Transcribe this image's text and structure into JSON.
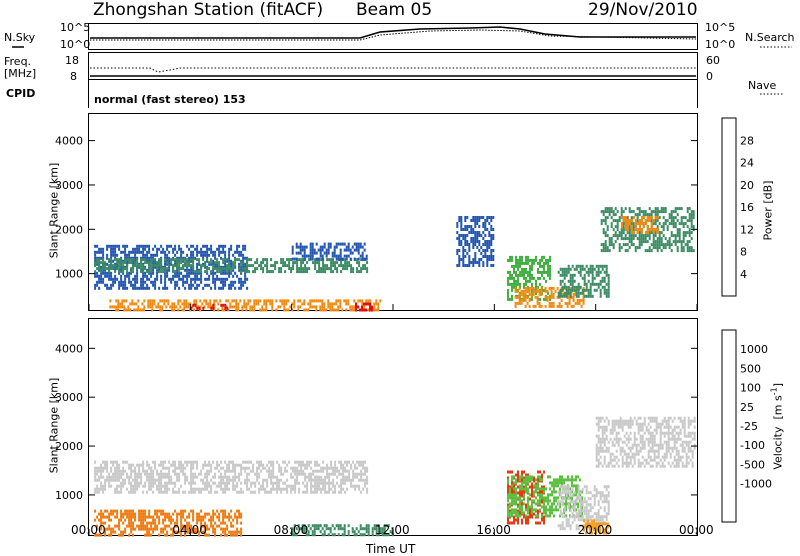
{
  "header": {
    "station": "Zhongshan Station (fitACF)",
    "beam": "Beam 05",
    "date": "29/Nov/2010"
  },
  "strip_panels": {
    "nsky_label": "N.Sky",
    "nsearch_label": "N.Search",
    "noise_ticks_left": [
      "10^5",
      "10^0"
    ],
    "noise_ticks_right": [
      "10^5",
      "10^0"
    ],
    "freq_label_line1": "Freq.",
    "freq_label_line2": "[MHz]",
    "freq_ticks": [
      "18",
      "8"
    ],
    "nave_label": "Nave",
    "nave_ticks": [
      "60",
      "0"
    ],
    "cpid_label": "CPID",
    "cpid_value": "normal (fast stereo) 153"
  },
  "chart_data": [
    {
      "type": "heatmap",
      "title": "",
      "xlabel": "Time UT",
      "ylabel": "Slant Range [km]",
      "x_ticks": [
        "00:00",
        "04:00",
        "08:00",
        "12:00",
        "16:00",
        "20:00",
        "00:00"
      ],
      "y_ticks": [
        "1000",
        "2000",
        "3000",
        "4000"
      ],
      "ylim": [
        180,
        4600
      ],
      "colorbar_label": "Power [dB]",
      "colorbar_ticks": [
        "4",
        "8",
        "12",
        "16",
        "20",
        "24",
        "28"
      ],
      "colorbar_colors": [
        "#1e2ee6",
        "#2255b0",
        "#3a8a62",
        "#40b040",
        "#e8d010",
        "#f08a10",
        "#e83a10",
        "#e01010"
      ],
      "regions": [
        {
          "t0": 0.2,
          "t1": 6.2,
          "r0": 650,
          "r1": 1650,
          "level": 1
        },
        {
          "t0": 0.2,
          "t1": 11.0,
          "r0": 1050,
          "r1": 1350,
          "level": 2
        },
        {
          "t0": 8.0,
          "t1": 11.0,
          "r0": 1300,
          "r1": 1700,
          "level": 1
        },
        {
          "t0": 0.8,
          "t1": 11.5,
          "r0": 200,
          "r1": 420,
          "level": 5
        },
        {
          "t0": 4.0,
          "t1": 5.5,
          "r0": 200,
          "r1": 320,
          "level": 7
        },
        {
          "t0": 10.5,
          "t1": 11.2,
          "r0": 200,
          "r1": 350,
          "level": 7
        },
        {
          "t0": 16.5,
          "t1": 18.2,
          "r0": 400,
          "r1": 1400,
          "level": 3
        },
        {
          "t0": 16.8,
          "t1": 19.5,
          "r0": 250,
          "r1": 700,
          "level": 5
        },
        {
          "t0": 20.2,
          "t1": 23.9,
          "r0": 1500,
          "r1": 2500,
          "level": 2
        },
        {
          "t0": 21.0,
          "t1": 22.5,
          "r0": 1900,
          "r1": 2300,
          "level": 5
        },
        {
          "t0": 18.5,
          "t1": 20.5,
          "r0": 500,
          "r1": 1200,
          "level": 2
        },
        {
          "t0": 14.5,
          "t1": 16.0,
          "r0": 1200,
          "r1": 2300,
          "level": 1
        }
      ]
    },
    {
      "type": "heatmap",
      "title": "",
      "xlabel": "Time UT",
      "ylabel": "Slant Range [km]",
      "x_ticks": [
        "00:00",
        "04:00",
        "08:00",
        "12:00",
        "16:00",
        "20:00",
        "00:00"
      ],
      "y_ticks": [
        "1000",
        "2000",
        "3000",
        "4000"
      ],
      "ylim": [
        180,
        4600
      ],
      "colorbar_label": "Velocity [m s^-1]",
      "colorbar_ticks": [
        "1000",
        "500",
        "100",
        "25",
        "-25",
        "-100",
        "-500",
        "-1000"
      ],
      "colorbar_colors": [
        "#1e2ee6",
        "#2a66b8",
        "#3a8a62",
        "#5cc040",
        "#c8c8c8",
        "#c8c8c8",
        "#f5a020",
        "#f07a10",
        "#e83a10",
        "#e01010"
      ],
      "regions": [
        {
          "t0": 0.2,
          "t1": 11.0,
          "r0": 1050,
          "r1": 1700,
          "level": 4
        },
        {
          "t0": 0.2,
          "t1": 6.0,
          "r0": 200,
          "r1": 700,
          "level": 7
        },
        {
          "t0": 8.0,
          "t1": 12.0,
          "r0": 200,
          "r1": 400,
          "level": 2
        },
        {
          "t0": 16.5,
          "t1": 18.0,
          "r0": 400,
          "r1": 1500,
          "level": 8
        },
        {
          "t0": 16.5,
          "t1": 19.5,
          "r0": 600,
          "r1": 1400,
          "level": 3
        },
        {
          "t0": 18.5,
          "t1": 20.5,
          "r0": 300,
          "r1": 1200,
          "level": 4
        },
        {
          "t0": 20.0,
          "t1": 23.9,
          "r0": 1600,
          "r1": 2600,
          "level": 4
        },
        {
          "t0": 19.5,
          "t1": 20.5,
          "r0": 200,
          "r1": 500,
          "level": 6
        }
      ]
    }
  ]
}
